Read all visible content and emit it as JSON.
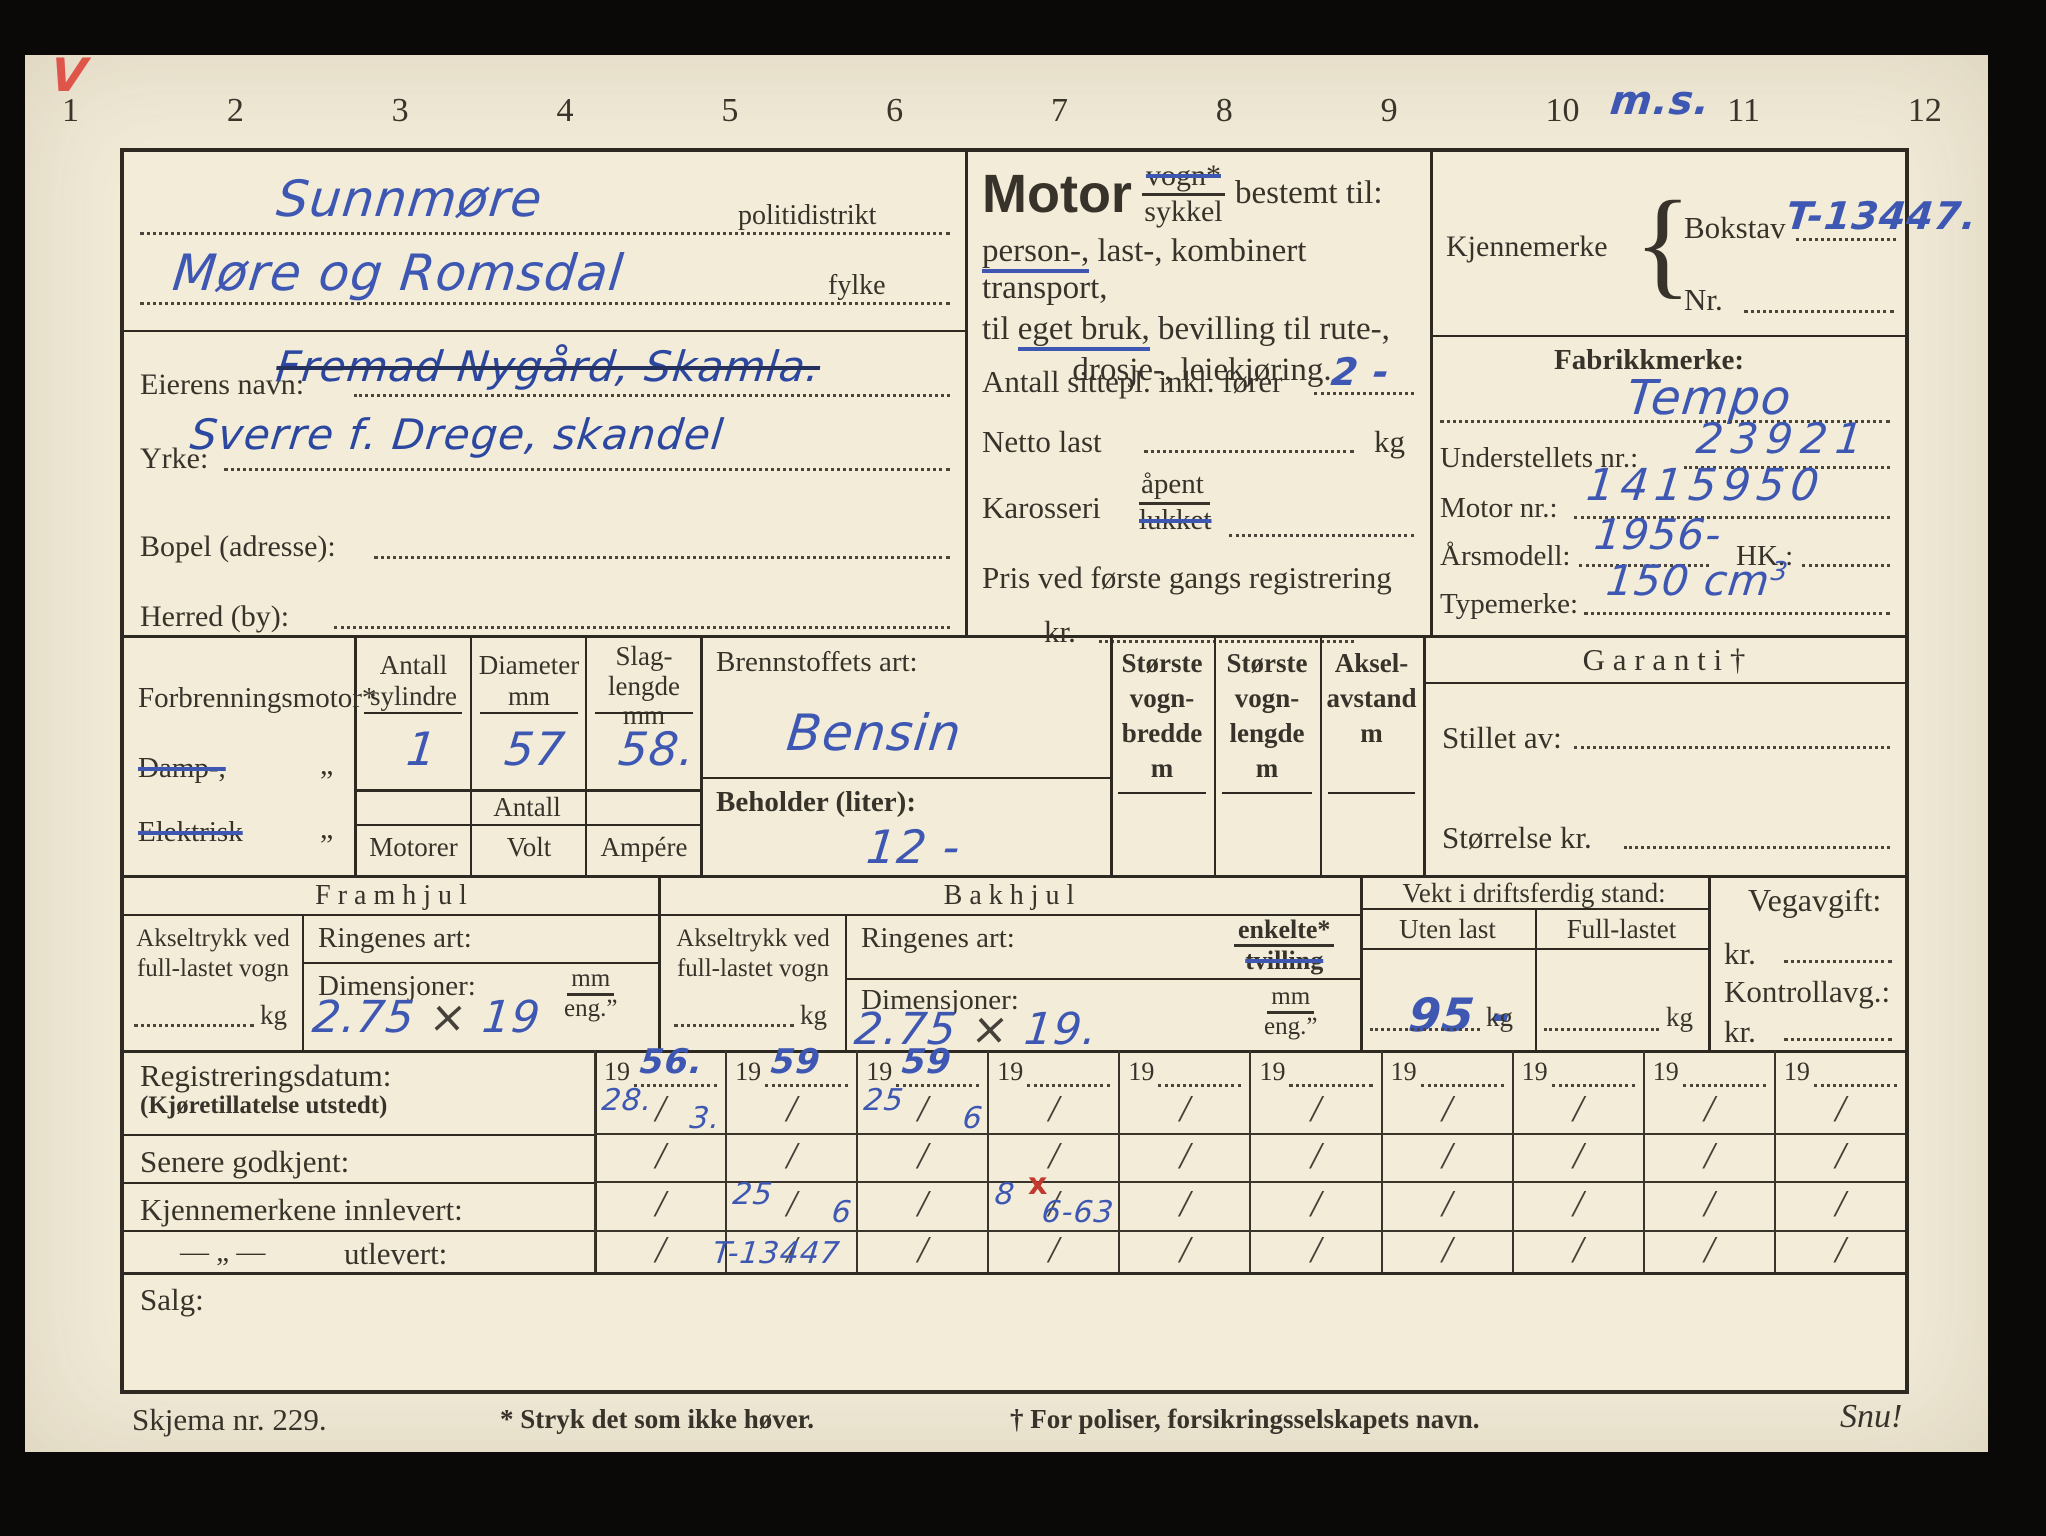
{
  "page": {
    "ruler_numbers": [
      "1",
      "2",
      "3",
      "4",
      "5",
      "6",
      "7",
      "8",
      "9",
      "10",
      "11",
      "12"
    ],
    "red_check_mark": "V",
    "blue_margin_note": "m.s.",
    "colors": {
      "paper": "#f1ebd8",
      "print_ink": "#38332a",
      "ink_blue": "#3d57b2",
      "ink_red": "#c23a2e"
    }
  },
  "owner": {
    "politidistrikt_value": "Sunnmøre",
    "politidistrikt_label": "politidistrikt",
    "fylke_value": "Møre og Romsdal",
    "fylke_label": "fylke",
    "eierens_navn_label": "Eierens navn:",
    "eierens_navn_struck_value": "Fremad Nygård, Skamla.",
    "yrke_label": "Yrke:",
    "yrke_value": "Sverre f. Drege, skandel",
    "bopel_label": "Bopel (adresse):",
    "herred_label": "Herred (by):"
  },
  "vehicle_use": {
    "motor_word": "Motor",
    "vogn_struck": "vogn*",
    "sykkel": "sykkel",
    "bestemt_til": "bestemt til:",
    "line1_underlined": "person-,",
    "line1_rest": " last-, kombinert transport,",
    "line2_pre": "til ",
    "line2_underlined": "eget bruk,",
    "line2_rest": " bevilling til rute-,",
    "line3": "drosje-, leiekjøring.",
    "sitteplasser_label": "Antall sittepl. inkl. fører",
    "sitteplasser_value": "2 -",
    "netto_last_label": "Netto last",
    "netto_last_unit": "kg",
    "karosseri_label": "Karosseri",
    "karosseri_apent": "åpent",
    "karosseri_lukket_struck": "lukket",
    "pris_label": "Pris ved første gangs registrering",
    "pris_kr_label": "kr."
  },
  "identity": {
    "kjennemerke_label": "Kjennemerke",
    "brace": "{",
    "bokstav_label": "Bokstav",
    "bokstav_value": "T-13447.",
    "nr_label": "Nr.",
    "fabrikkmerke_label": "Fabrikkmerke:",
    "fabrikkmerke_value": "Tempo",
    "understell_label": "Understellets nr.:",
    "understell_value": "23921",
    "motornr_label": "Motor nr.:",
    "motornr_value": "1415950",
    "arsmodell_label": "Årsmodell:",
    "arsmodell_value": "1956-",
    "hk_label": "HK.:",
    "typemerke_label": "Typemerke:",
    "typemerke_value": "150 cm",
    "typemerke_sup": "3"
  },
  "engine": {
    "forbrenning_label": "Forbrenningsmotor*",
    "damp_struck": "Damp-,",
    "elektrisk_struck": "Elektrisk",
    "ditto": "„",
    "col_sylindre": "Antall sylindre",
    "col_diameter": "Diameter mm",
    "col_slaglengde_1": "Slag-",
    "col_slaglengde_2": "lengde mm",
    "val_sylindre": "1",
    "val_diameter": "57",
    "val_slaglengde": "58.",
    "antall_header": "Antall",
    "col_motorer": "Motorer",
    "col_volt": "Volt",
    "col_ampere": "Ampére",
    "brennstoff_label": "Brennstoffets art:",
    "brennstoff_value": "Bensin",
    "beholder_label": "Beholder (liter):",
    "beholder_value": "12 -",
    "col_bredde": "Største vogn- bredde m",
    "col_lengde": "Største vogn- lengde m",
    "col_aksel": "Aksel- avstand m",
    "garanti_title": "G a r a n t i †",
    "stillet_av_label": "Stillet av:",
    "storrelse_label": "Størrelse kr."
  },
  "wheels": {
    "framhjul_title": "F r a m h j u l",
    "bakhjul_title": "B a k h j u l",
    "akseltrykk_label": "Akseltrykk ved full-lastet vogn",
    "kg": "kg",
    "ringenes_label": "Ringenes art:",
    "dimensjoner_label": "Dimensjoner:",
    "mm": "mm",
    "eng": "eng.”",
    "dim_front_a": "2.75",
    "dim_x": "×",
    "dim_front_b": "19",
    "dim_back_a": "2.75",
    "dim_back_b": "19.",
    "enkelte": "enkelte*",
    "tvilling_struck": "tvilling",
    "vekt_title": "Vekt i driftsferdig stand:",
    "uten_last": "Uten last",
    "full_lastet": "Full-lastet",
    "uten_last_value": "95 -",
    "vegavgift_title": "Vegavgift:",
    "kr": "kr.",
    "kontrollavg_title": "Kontrollavg.:"
  },
  "registration": {
    "row1_label": "Registreringsdatum:",
    "row1_sublabel": "(Kjøretillatelse utstedt)",
    "row2_label": "Senere godkjent:",
    "row3_label": "Kjennemerkene innlevert:",
    "row4_label_dash": "— „ —",
    "row4_label": "utlevert:",
    "year_prefix": "19",
    "slash": "/",
    "columns": [
      {
        "year": "56.",
        "cells": [
          {
            "l": "28.",
            "r": "3."
          },
          {},
          {},
          {}
        ]
      },
      {
        "year": "59",
        "cells": [
          {},
          {},
          {
            "l": "25",
            "r": "6"
          },
          {
            "over": "T-13447"
          }
        ]
      },
      {
        "year": "59",
        "cells": [
          {
            "l": "25",
            "r": "6"
          },
          {},
          {},
          {}
        ]
      },
      {
        "year": "",
        "cells": [
          {},
          {},
          {
            "l": "8",
            "r": "6-63",
            "red": "x"
          },
          {}
        ]
      },
      {
        "year": "",
        "cells": [
          {},
          {},
          {},
          {}
        ]
      },
      {
        "year": "",
        "cells": [
          {},
          {},
          {},
          {}
        ]
      },
      {
        "year": "",
        "cells": [
          {},
          {},
          {},
          {}
        ]
      },
      {
        "year": "",
        "cells": [
          {},
          {},
          {},
          {}
        ]
      },
      {
        "year": "",
        "cells": [
          {},
          {},
          {},
          {}
        ]
      },
      {
        "year": "",
        "cells": [
          {},
          {},
          {},
          {}
        ]
      }
    ]
  },
  "salg_label": "Salg:",
  "footer": {
    "skjema": "Skjema nr. 229.",
    "stryk_note": "* Stryk det som ikke høver.",
    "poliser_note": "† For poliser, forsikringsselskapets navn.",
    "snu": "Snu!"
  }
}
